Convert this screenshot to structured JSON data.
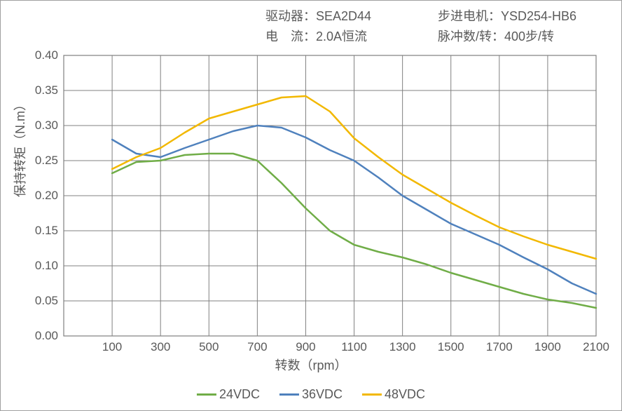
{
  "header": {
    "driver_label": "驱动器：",
    "driver_value": "SEA2D44",
    "motor_label": "步进电机：",
    "motor_value": "YSD254-HB6",
    "current_label": "电　流：",
    "current_value": "2.0A恒流",
    "pulse_label": "脉冲数/转：",
    "pulse_value": "400步/转"
  },
  "chart": {
    "type": "line",
    "x_label": "转数（rpm）",
    "y_label": "保持转矩（N.m）",
    "background_color": "#ffffff",
    "grid_color": "#808080",
    "axis_color": "#595959",
    "tick_fontsize": 17,
    "label_fontsize": 18,
    "x_ticks": [
      100,
      300,
      500,
      700,
      900,
      1100,
      1300,
      1500,
      1700,
      1900,
      2100
    ],
    "y_ticks": [
      0.0,
      0.05,
      0.1,
      0.15,
      0.2,
      0.25,
      0.3,
      0.35,
      0.4
    ],
    "xlim": [
      0,
      2200
    ],
    "ylim": [
      0.0,
      0.4
    ],
    "line_width": 2.5,
    "series": [
      {
        "name": "24VDC",
        "color": "#70ad47",
        "x": [
          100,
          200,
          300,
          400,
          500,
          600,
          700,
          800,
          900,
          1000,
          1100,
          1200,
          1300,
          1400,
          1500,
          1600,
          1700,
          1800,
          1900,
          2000,
          2100
        ],
        "y": [
          0.232,
          0.248,
          0.25,
          0.258,
          0.26,
          0.26,
          0.25,
          0.218,
          0.182,
          0.15,
          0.13,
          0.12,
          0.112,
          0.102,
          0.09,
          0.08,
          0.07,
          0.06,
          0.052,
          0.047,
          0.04
        ]
      },
      {
        "name": "36VDC",
        "color": "#4f81bd",
        "x": [
          100,
          200,
          300,
          400,
          500,
          600,
          700,
          800,
          900,
          1000,
          1100,
          1200,
          1300,
          1400,
          1500,
          1600,
          1700,
          1800,
          1900,
          2000,
          2100
        ],
        "y": [
          0.28,
          0.26,
          0.255,
          0.268,
          0.28,
          0.292,
          0.3,
          0.297,
          0.283,
          0.265,
          0.25,
          0.226,
          0.2,
          0.18,
          0.16,
          0.145,
          0.13,
          0.112,
          0.095,
          0.075,
          0.06
        ]
      },
      {
        "name": "48VDC",
        "color": "#f2b800",
        "x": [
          100,
          200,
          300,
          400,
          500,
          600,
          700,
          800,
          900,
          1000,
          1100,
          1200,
          1300,
          1400,
          1500,
          1600,
          1700,
          1800,
          1900,
          2000,
          2100
        ],
        "y": [
          0.238,
          0.255,
          0.268,
          0.29,
          0.31,
          0.32,
          0.33,
          0.34,
          0.342,
          0.32,
          0.282,
          0.255,
          0.23,
          0.21,
          0.19,
          0.172,
          0.155,
          0.142,
          0.13,
          0.12,
          0.11
        ]
      }
    ],
    "legend_position": "bottom"
  }
}
